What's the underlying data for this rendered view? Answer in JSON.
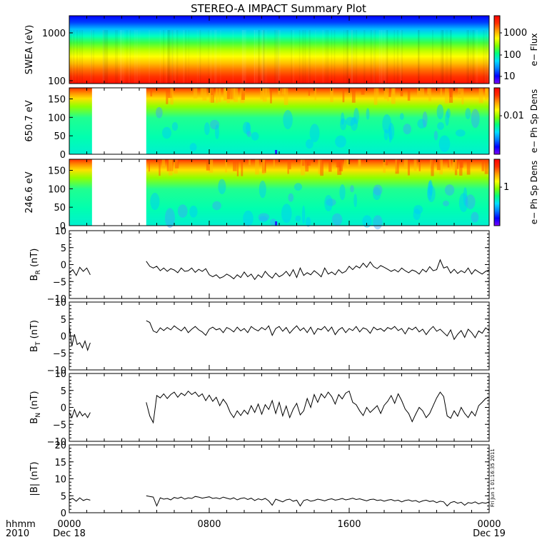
{
  "title": "STEREO-A IMPACT Summary Plot",
  "footer": {
    "time_label": "hhmm",
    "year_label": "2010",
    "x_ticks": [
      "0000",
      "0800",
      "1600",
      "0000"
    ],
    "x_dates": [
      "Dec 18",
      "",
      "",
      "Dec 19"
    ],
    "timestamp": "Fri Jun 1 01:16:35 2011"
  },
  "colors": {
    "gradient": [
      "#7f00ff",
      "#0000ff",
      "#0080ff",
      "#00e0ff",
      "#00ff80",
      "#80ff00",
      "#ffff00",
      "#ffa000",
      "#ff3000",
      "#ff0000"
    ]
  },
  "chart_data": [
    {
      "type": "heatmap",
      "id": "swea",
      "ylabel": "SWEA (eV)",
      "yscale": "log",
      "ylim": [
        100,
        2000
      ],
      "yticks": [
        "1000",
        "100"
      ],
      "colorbar": {
        "label": "e− Flux",
        "scale": "log",
        "ticks": [
          "1000",
          "100",
          "10"
        ]
      }
    },
    {
      "type": "heatmap",
      "id": "pad650",
      "ylabel": "650.7 eV",
      "ylim": [
        0,
        180
      ],
      "yticks": [
        "150",
        "100",
        "50",
        "0"
      ],
      "data_gap_hours": [
        1.3,
        4.4
      ],
      "colorbar": {
        "label": "e− Ph Sp Dens",
        "scale": "log",
        "ticks": [
          "0.01"
        ]
      }
    },
    {
      "type": "heatmap",
      "id": "pad246",
      "ylabel": "246.6 eV",
      "ylim": [
        0,
        180
      ],
      "yticks": [
        "150",
        "100",
        "50",
        "0"
      ],
      "data_gap_hours": [
        1.3,
        4.4
      ],
      "colorbar": {
        "label": "e− Ph Sp Dens",
        "scale": "log",
        "ticks": [
          "1"
        ]
      }
    },
    {
      "type": "line",
      "id": "br",
      "ylabel": "B",
      "ysub": "R",
      "yunit": " (nT)",
      "ylim": [
        -10,
        10
      ],
      "yticks": [
        "10",
        "5",
        "0",
        "−5",
        "−10"
      ],
      "segments": [
        {
          "x": [
            0.0,
            0.2,
            0.4,
            0.6,
            0.8,
            1.0,
            1.2
          ],
          "y": [
            -2.5,
            -1.5,
            -3.2,
            -0.8,
            -2.0,
            -1.0,
            -3.0
          ]
        },
        {
          "x": [
            4.4,
            4.6,
            4.8,
            5.0,
            5.2,
            5.4,
            5.6,
            5.8,
            6.0,
            6.2,
            6.4,
            6.6,
            6.8,
            7.0,
            7.2,
            7.4,
            7.6,
            7.8,
            8.0,
            8.2,
            8.4,
            8.6,
            8.8,
            9.0,
            9.2,
            9.4,
            9.6,
            9.8,
            10.0,
            10.2,
            10.4,
            10.6,
            10.8,
            11.0,
            11.2,
            11.4,
            11.6,
            11.8,
            12.0,
            12.2,
            12.4,
            12.6,
            12.8,
            13.0,
            13.2,
            13.4,
            13.6,
            13.8,
            14.0,
            14.2,
            14.4,
            14.6,
            14.8,
            15.0,
            15.2,
            15.4,
            15.6,
            15.8,
            16.0,
            16.2,
            16.4,
            16.6,
            16.8,
            17.0,
            17.2,
            17.4,
            17.6,
            17.8,
            18.0,
            18.2,
            18.4,
            18.6,
            18.8,
            19.0,
            19.2,
            19.4,
            19.6,
            19.8,
            20.0,
            20.2,
            20.4,
            20.6,
            20.8,
            21.0,
            21.2,
            21.4,
            21.6,
            21.8,
            22.0,
            22.2,
            22.4,
            22.6,
            22.8,
            23.0,
            23.2,
            23.4,
            23.6,
            23.8,
            24.0
          ],
          "y": [
            1.0,
            -0.5,
            -1.0,
            -0.5,
            -1.8,
            -1.0,
            -2.0,
            -1.2,
            -1.6,
            -2.4,
            -1.0,
            -2.0,
            -1.8,
            -1.0,
            -2.3,
            -1.4,
            -2.0,
            -1.2,
            -3.0,
            -3.6,
            -3.0,
            -4.0,
            -3.6,
            -2.8,
            -3.4,
            -4.2,
            -3.0,
            -3.8,
            -2.2,
            -3.6,
            -2.8,
            -4.4,
            -3.0,
            -3.8,
            -2.0,
            -3.2,
            -4.0,
            -2.5,
            -3.6,
            -3.0,
            -2.0,
            -3.4,
            -1.5,
            -3.8,
            -1.0,
            -3.2,
            -2.4,
            -3.0,
            -1.8,
            -2.6,
            -3.6,
            -1.0,
            -2.8,
            -2.2,
            -3.0,
            -1.5,
            -2.5,
            -2.0,
            -0.5,
            -1.5,
            -0.4,
            -1.0,
            0.4,
            -0.8,
            0.8,
            -0.6,
            -1.2,
            -0.3,
            -0.8,
            -1.4,
            -2.0,
            -1.5,
            -2.2,
            -1.0,
            -1.8,
            -2.4,
            -1.6,
            -2.0,
            -2.8,
            -1.4,
            -2.2,
            -0.6,
            -1.8,
            -1.5,
            1.4,
            -1.0,
            -0.6,
            -2.5,
            -1.4,
            -2.6,
            -1.8,
            -2.4,
            -1.0,
            -2.8,
            -1.5,
            -2.2,
            -2.8,
            -2.0,
            -1.6
          ]
        }
      ]
    },
    {
      "type": "line",
      "id": "bt",
      "ylabel": "B",
      "ysub": "T",
      "yunit": " (nT)",
      "ylim": [
        -10,
        10
      ],
      "yticks": [
        "10",
        "5",
        "0",
        "−5",
        "−10"
      ],
      "segments": [
        {
          "x": [
            0.0,
            0.15,
            0.3,
            0.45,
            0.6,
            0.75,
            0.9,
            1.05,
            1.2
          ],
          "y": [
            3.0,
            -3.0,
            0.5,
            -2.5,
            -2.0,
            -3.5,
            -1.5,
            -4.2,
            -2.0
          ]
        },
        {
          "x": [
            4.4,
            4.6,
            4.8,
            5.0,
            5.2,
            5.4,
            5.6,
            5.8,
            6.0,
            6.2,
            6.4,
            6.6,
            6.8,
            7.0,
            7.2,
            7.4,
            7.6,
            7.8,
            8.0,
            8.2,
            8.4,
            8.6,
            8.8,
            9.0,
            9.2,
            9.4,
            9.6,
            9.8,
            10.0,
            10.2,
            10.4,
            10.6,
            10.8,
            11.0,
            11.2,
            11.4,
            11.6,
            11.8,
            12.0,
            12.2,
            12.4,
            12.6,
            12.8,
            13.0,
            13.2,
            13.4,
            13.6,
            13.8,
            14.0,
            14.2,
            14.4,
            14.6,
            14.8,
            15.0,
            15.2,
            15.4,
            15.6,
            15.8,
            16.0,
            16.2,
            16.4,
            16.6,
            16.8,
            17.0,
            17.2,
            17.4,
            17.6,
            17.8,
            18.0,
            18.2,
            18.4,
            18.6,
            18.8,
            19.0,
            19.2,
            19.4,
            19.6,
            19.8,
            20.0,
            20.2,
            20.4,
            20.6,
            20.8,
            21.0,
            21.2,
            21.4,
            21.6,
            21.8,
            22.0,
            22.2,
            22.4,
            22.6,
            22.8,
            23.0,
            23.2,
            23.4,
            23.6,
            23.8,
            24.0
          ],
          "y": [
            4.5,
            4.0,
            1.5,
            1.0,
            2.4,
            1.6,
            2.5,
            1.8,
            3.0,
            2.2,
            1.5,
            2.6,
            1.0,
            2.0,
            2.8,
            1.8,
            1.2,
            0.2,
            2.0,
            2.6,
            1.8,
            2.2,
            1.0,
            2.5,
            2.0,
            1.2,
            2.6,
            1.5,
            2.2,
            1.0,
            2.8,
            2.0,
            1.5,
            2.5,
            1.8,
            3.0,
            0.2,
            2.2,
            2.8,
            1.4,
            2.5,
            0.8,
            2.0,
            3.0,
            1.6,
            2.4,
            1.0,
            2.6,
            0.5,
            2.2,
            1.8,
            2.8,
            1.4,
            2.6,
            0.4,
            1.8,
            2.5,
            1.0,
            2.2,
            1.6,
            2.8,
            1.2,
            2.4,
            2.0,
            0.8,
            2.6,
            1.8,
            2.2,
            1.4,
            2.5,
            2.0,
            2.8,
            1.6,
            2.2,
            0.6,
            2.4,
            1.8,
            2.6,
            1.2,
            2.0,
            0.4,
            1.8,
            2.8,
            1.4,
            2.0,
            1.0,
            0.0,
            1.8,
            -1.0,
            0.5,
            1.6,
            -0.4,
            2.0,
            1.0,
            -0.5,
            1.5,
            0.8,
            2.4,
            1.6
          ]
        }
      ]
    },
    {
      "type": "line",
      "id": "bn",
      "ylabel": "B",
      "ysub": "N",
      "yunit": " (nT)",
      "ylim": [
        -10,
        10
      ],
      "yticks": [
        "10",
        "5",
        "0",
        "−5",
        "−10"
      ],
      "segments": [
        {
          "x": [
            0.0,
            0.15,
            0.3,
            0.45,
            0.6,
            0.75,
            0.9,
            1.05,
            1.2
          ],
          "y": [
            -1.5,
            -3.0,
            -0.6,
            -2.8,
            -1.2,
            -2.5,
            -1.8,
            -3.0,
            -1.5
          ]
        },
        {
          "x": [
            4.4,
            4.6,
            4.8,
            5.0,
            5.2,
            5.4,
            5.6,
            5.8,
            6.0,
            6.2,
            6.4,
            6.6,
            6.8,
            7.0,
            7.2,
            7.4,
            7.6,
            7.8,
            8.0,
            8.2,
            8.4,
            8.6,
            8.8,
            9.0,
            9.2,
            9.4,
            9.6,
            9.8,
            10.0,
            10.2,
            10.4,
            10.6,
            10.8,
            11.0,
            11.2,
            11.4,
            11.6,
            11.8,
            12.0,
            12.2,
            12.4,
            12.6,
            12.8,
            13.0,
            13.2,
            13.4,
            13.6,
            13.8,
            14.0,
            14.2,
            14.4,
            14.6,
            14.8,
            15.0,
            15.2,
            15.4,
            15.6,
            15.8,
            16.0,
            16.2,
            16.4,
            16.6,
            16.8,
            17.0,
            17.2,
            17.4,
            17.6,
            17.8,
            18.0,
            18.2,
            18.4,
            18.6,
            18.8,
            19.0,
            19.2,
            19.4,
            19.6,
            19.8,
            20.0,
            20.2,
            20.4,
            20.6,
            20.8,
            21.0,
            21.2,
            21.4,
            21.6,
            21.8,
            22.0,
            22.2,
            22.4,
            22.6,
            22.8,
            23.0,
            23.2,
            23.4,
            23.6,
            23.8,
            24.0
          ],
          "y": [
            1.5,
            -2.5,
            -4.5,
            3.5,
            2.8,
            4.0,
            2.6,
            3.8,
            4.5,
            3.0,
            4.2,
            3.5,
            4.8,
            3.8,
            4.5,
            3.2,
            4.0,
            2.0,
            3.6,
            1.8,
            3.0,
            0.5,
            2.4,
            1.0,
            -1.5,
            -3.0,
            -1.0,
            -2.4,
            -0.8,
            -2.0,
            0.5,
            -1.5,
            1.0,
            -2.0,
            0.8,
            -0.6,
            2.0,
            -1.8,
            1.5,
            -2.5,
            0.4,
            -3.0,
            -0.5,
            1.2,
            -2.2,
            -1.0,
            2.6,
            0.0,
            3.8,
            1.5,
            4.0,
            2.8,
            4.5,
            3.2,
            1.0,
            3.8,
            2.5,
            4.2,
            4.8,
            1.5,
            0.8,
            -1.0,
            -2.4,
            0.0,
            -1.5,
            -0.5,
            0.5,
            -1.8,
            0.6,
            1.8,
            3.5,
            1.2,
            4.0,
            2.0,
            -0.5,
            -1.8,
            -4.2,
            -2.0,
            0.0,
            -1.0,
            -3.0,
            -1.8,
            0.5,
            2.8,
            4.5,
            3.2,
            -2.5,
            -3.2,
            -1.0,
            -2.6,
            0.0,
            -1.8,
            -3.0,
            -1.2,
            -2.5,
            0.5,
            1.5,
            2.6,
            3.0
          ]
        }
      ]
    },
    {
      "type": "line",
      "id": "bmag",
      "ylabel": "|B| (nT)",
      "ylim": [
        0,
        20
      ],
      "yticks": [
        "20",
        "15",
        "10",
        "5",
        "0"
      ],
      "segments": [
        {
          "x": [
            0.0,
            0.2,
            0.4,
            0.6,
            0.8,
            1.0,
            1.2
          ],
          "y": [
            3.8,
            4.2,
            3.4,
            4.4,
            3.6,
            4.0,
            3.7
          ]
        },
        {
          "x": [
            4.4,
            4.6,
            4.8,
            5.0,
            5.2,
            5.4,
            5.6,
            5.8,
            6.0,
            6.2,
            6.4,
            6.6,
            6.8,
            7.0,
            7.2,
            7.4,
            7.6,
            7.8,
            8.0,
            8.2,
            8.4,
            8.6,
            8.8,
            9.0,
            9.2,
            9.4,
            9.6,
            9.8,
            10.0,
            10.2,
            10.4,
            10.6,
            10.8,
            11.0,
            11.2,
            11.4,
            11.6,
            11.8,
            12.0,
            12.2,
            12.4,
            12.6,
            12.8,
            13.0,
            13.2,
            13.4,
            13.6,
            13.8,
            14.0,
            14.2,
            14.4,
            14.6,
            14.8,
            15.0,
            15.2,
            15.4,
            15.6,
            15.8,
            16.0,
            16.2,
            16.4,
            16.6,
            16.8,
            17.0,
            17.2,
            17.4,
            17.6,
            17.8,
            18.0,
            18.2,
            18.4,
            18.6,
            18.8,
            19.0,
            19.2,
            19.4,
            19.6,
            19.8,
            20.0,
            20.2,
            20.4,
            20.6,
            20.8,
            21.0,
            21.2,
            21.4,
            21.6,
            21.8,
            22.0,
            22.2,
            22.4,
            22.6,
            22.8,
            23.0,
            23.2,
            23.4,
            23.6,
            23.8,
            24.0
          ],
          "y": [
            5.0,
            4.8,
            4.6,
            2.0,
            4.4,
            4.0,
            4.2,
            3.8,
            4.5,
            4.2,
            4.6,
            4.0,
            4.4,
            4.2,
            4.8,
            4.6,
            4.3,
            4.5,
            4.7,
            4.2,
            4.4,
            4.1,
            4.6,
            4.3,
            4.0,
            4.4,
            3.8,
            4.2,
            4.4,
            3.9,
            4.3,
            3.6,
            4.1,
            3.8,
            4.2,
            3.5,
            2.2,
            4.0,
            3.6,
            3.2,
            3.8,
            4.0,
            3.4,
            3.7,
            2.0,
            3.6,
            3.9,
            3.4,
            3.6,
            4.0,
            3.8,
            3.5,
            3.9,
            4.1,
            3.7,
            3.9,
            4.2,
            3.8,
            4.0,
            4.3,
            3.9,
            4.1,
            3.8,
            3.5,
            3.9,
            4.0,
            3.6,
            3.8,
            3.4,
            3.7,
            3.9,
            3.5,
            3.7,
            3.2,
            3.6,
            3.8,
            3.4,
            3.6,
            3.1,
            3.5,
            3.7,
            3.3,
            3.5,
            3.0,
            3.4,
            3.2,
            2.0,
            3.0,
            3.3,
            2.8,
            3.1,
            2.2,
            3.0,
            2.8,
            3.2,
            2.6,
            3.0,
            2.8,
            3.2
          ]
        }
      ]
    }
  ]
}
